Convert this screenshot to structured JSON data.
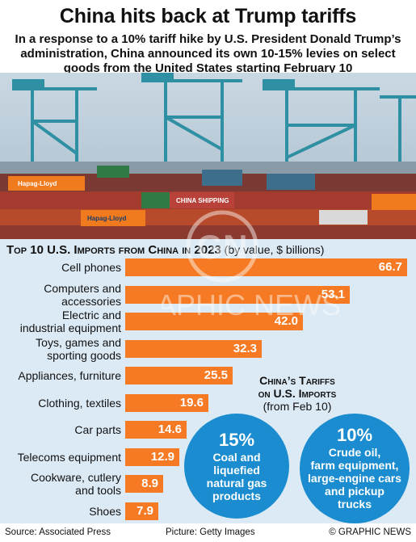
{
  "header": {
    "title": "China hits back at Trump tariffs",
    "subtitle": "In a response to a 10% tariff hike by U.S. President Donald Trump’s administration, China announced its own 10-15% levies on select goods from the United States starting February 10"
  },
  "photo": {
    "container_labels": [
      "Hapag-Lloyd",
      "CHINA SHIPPING",
      "Hapag-Lloyd"
    ]
  },
  "chart_data": {
    "type": "bar",
    "title": "Top 10 U.S. Imports from China in 2023",
    "title_suffix": "(by value, $ billions)",
    "categories": [
      "Cell phones",
      "Computers and accessories",
      "Electric and industrial equipment",
      "Toys, games and sporting goods",
      "Appliances, furniture",
      "Clothing, textiles",
      "Car parts",
      "Telecoms equipment",
      "Cookware, cutlery and tools",
      "Shoes"
    ],
    "category_lines": [
      [
        "Cell phones"
      ],
      [
        "Computers and",
        "accessories"
      ],
      [
        "Electric and",
        "industrial equipment"
      ],
      [
        "Toys, games and",
        "sporting goods"
      ],
      [
        "Appliances, furniture"
      ],
      [
        "Clothing, textiles"
      ],
      [
        "Car parts"
      ],
      [
        "Telecoms equipment"
      ],
      [
        "Cookware, cutlery",
        "and tools"
      ],
      [
        "Shoes"
      ]
    ],
    "values": [
      66.7,
      53.1,
      42.0,
      32.3,
      25.5,
      19.6,
      14.6,
      12.9,
      8.9,
      7.9
    ],
    "value_labels": [
      "66.7",
      "53.1",
      "42.0",
      "32.3",
      "25.5",
      "19.6",
      "14.6",
      "12.9",
      "8.9",
      "7.9"
    ],
    "xlim": [
      0,
      70
    ],
    "bar_color": "#f57a23"
  },
  "tariffs": {
    "heading": "China’s Tariffs on U.S. Imports",
    "heading_line1": "China’s Tariffs",
    "heading_line2": "on U.S. Imports",
    "date_note": "(from Feb 10)",
    "items": [
      {
        "pct": "15%",
        "lines": [
          "Coal and",
          "liquefied",
          "natural gas",
          "products"
        ]
      },
      {
        "pct": "10%",
        "lines": [
          "Crude oil,",
          "farm equipment,",
          "large-engine cars",
          "and pickup",
          "trucks"
        ]
      }
    ],
    "circle_color": "#1a8ccf"
  },
  "footer": {
    "source": "Source: Associated Press",
    "picture": "Picture: Getty Images",
    "credit": "© GRAPHIC NEWS"
  },
  "watermark": {
    "text": "GRAPHIC NEWS",
    "logo": "GN"
  },
  "colors": {
    "panel_bg": "#dceaf5",
    "accent": "#f57a23",
    "blue": "#1a8ccf"
  }
}
